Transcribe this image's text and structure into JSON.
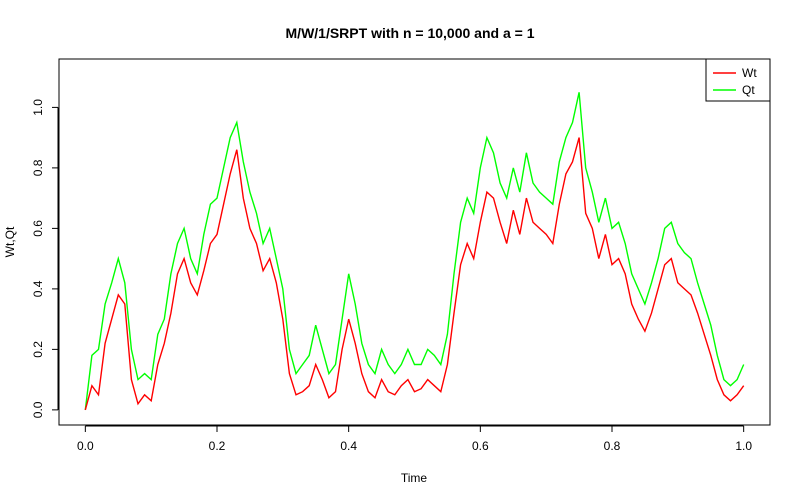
{
  "chart_data": {
    "type": "line",
    "title": "M/W/1/SRPT with n = 10,000 and a = 1",
    "xlabel": "Time",
    "ylabel": "Wt,Qt",
    "xlim": [
      -0.04,
      1.04
    ],
    "ylim": [
      -0.05,
      1.16
    ],
    "xticks": [
      0.0,
      0.2,
      0.4,
      0.6,
      0.8,
      1.0
    ],
    "xtick_labels": [
      "0.0",
      "0.2",
      "0.4",
      "0.6",
      "0.8",
      "1.0"
    ],
    "yticks": [
      0.0,
      0.2,
      0.4,
      0.6,
      0.8,
      1.0
    ],
    "ytick_labels": [
      "0.0",
      "0.2",
      "0.4",
      "0.6",
      "0.8",
      "1.0"
    ],
    "grid": false,
    "legend_position": "top-right",
    "series": [
      {
        "name": "Wt",
        "color": "#ff0000",
        "x": [
          0.0,
          0.01,
          0.02,
          0.03,
          0.04,
          0.05,
          0.06,
          0.07,
          0.08,
          0.09,
          0.1,
          0.11,
          0.12,
          0.13,
          0.14,
          0.15,
          0.16,
          0.17,
          0.18,
          0.19,
          0.2,
          0.21,
          0.22,
          0.23,
          0.24,
          0.25,
          0.26,
          0.27,
          0.28,
          0.29,
          0.3,
          0.31,
          0.32,
          0.33,
          0.34,
          0.35,
          0.36,
          0.37,
          0.38,
          0.39,
          0.4,
          0.41,
          0.42,
          0.43,
          0.44,
          0.45,
          0.46,
          0.47,
          0.48,
          0.49,
          0.5,
          0.51,
          0.52,
          0.53,
          0.54,
          0.55,
          0.56,
          0.57,
          0.58,
          0.59,
          0.6,
          0.61,
          0.62,
          0.63,
          0.64,
          0.65,
          0.66,
          0.67,
          0.68,
          0.69,
          0.7,
          0.71,
          0.72,
          0.73,
          0.74,
          0.75,
          0.76,
          0.77,
          0.78,
          0.79,
          0.8,
          0.81,
          0.82,
          0.83,
          0.84,
          0.85,
          0.86,
          0.87,
          0.88,
          0.89,
          0.9,
          0.91,
          0.92,
          0.93,
          0.94,
          0.95,
          0.96,
          0.97,
          0.98,
          0.99,
          1.0
        ],
        "values": [
          0.0,
          0.08,
          0.05,
          0.22,
          0.3,
          0.38,
          0.35,
          0.1,
          0.02,
          0.05,
          0.03,
          0.15,
          0.22,
          0.32,
          0.45,
          0.5,
          0.42,
          0.38,
          0.46,
          0.55,
          0.58,
          0.68,
          0.78,
          0.86,
          0.7,
          0.6,
          0.55,
          0.46,
          0.5,
          0.42,
          0.3,
          0.12,
          0.05,
          0.06,
          0.08,
          0.15,
          0.1,
          0.04,
          0.06,
          0.2,
          0.3,
          0.22,
          0.12,
          0.06,
          0.04,
          0.1,
          0.06,
          0.05,
          0.08,
          0.1,
          0.06,
          0.07,
          0.1,
          0.08,
          0.06,
          0.15,
          0.32,
          0.48,
          0.55,
          0.5,
          0.62,
          0.72,
          0.7,
          0.62,
          0.55,
          0.66,
          0.58,
          0.7,
          0.62,
          0.6,
          0.58,
          0.55,
          0.68,
          0.78,
          0.82,
          0.9,
          0.65,
          0.6,
          0.5,
          0.58,
          0.48,
          0.5,
          0.45,
          0.35,
          0.3,
          0.26,
          0.32,
          0.4,
          0.48,
          0.5,
          0.42,
          0.4,
          0.38,
          0.32,
          0.25,
          0.18,
          0.1,
          0.05,
          0.03,
          0.05,
          0.08
        ]
      },
      {
        "name": "Qt",
        "color": "#00ff00",
        "x": [
          0.0,
          0.01,
          0.02,
          0.03,
          0.04,
          0.05,
          0.06,
          0.07,
          0.08,
          0.09,
          0.1,
          0.11,
          0.12,
          0.13,
          0.14,
          0.15,
          0.16,
          0.17,
          0.18,
          0.19,
          0.2,
          0.21,
          0.22,
          0.23,
          0.24,
          0.25,
          0.26,
          0.27,
          0.28,
          0.29,
          0.3,
          0.31,
          0.32,
          0.33,
          0.34,
          0.35,
          0.36,
          0.37,
          0.38,
          0.39,
          0.4,
          0.41,
          0.42,
          0.43,
          0.44,
          0.45,
          0.46,
          0.47,
          0.48,
          0.49,
          0.5,
          0.51,
          0.52,
          0.53,
          0.54,
          0.55,
          0.56,
          0.57,
          0.58,
          0.59,
          0.6,
          0.61,
          0.62,
          0.63,
          0.64,
          0.65,
          0.66,
          0.67,
          0.68,
          0.69,
          0.7,
          0.71,
          0.72,
          0.73,
          0.74,
          0.75,
          0.76,
          0.77,
          0.78,
          0.79,
          0.8,
          0.81,
          0.82,
          0.83,
          0.84,
          0.85,
          0.86,
          0.87,
          0.88,
          0.89,
          0.9,
          0.91,
          0.92,
          0.93,
          0.94,
          0.95,
          0.96,
          0.97,
          0.98,
          0.99,
          1.0
        ],
        "values": [
          0.0,
          0.18,
          0.2,
          0.35,
          0.42,
          0.5,
          0.42,
          0.2,
          0.1,
          0.12,
          0.1,
          0.25,
          0.3,
          0.45,
          0.55,
          0.6,
          0.5,
          0.45,
          0.58,
          0.68,
          0.7,
          0.8,
          0.9,
          0.95,
          0.82,
          0.72,
          0.65,
          0.55,
          0.6,
          0.5,
          0.4,
          0.2,
          0.12,
          0.15,
          0.18,
          0.28,
          0.2,
          0.12,
          0.15,
          0.3,
          0.45,
          0.35,
          0.22,
          0.15,
          0.12,
          0.2,
          0.15,
          0.12,
          0.15,
          0.2,
          0.15,
          0.15,
          0.2,
          0.18,
          0.15,
          0.25,
          0.45,
          0.62,
          0.7,
          0.65,
          0.8,
          0.9,
          0.85,
          0.75,
          0.7,
          0.8,
          0.72,
          0.85,
          0.75,
          0.72,
          0.7,
          0.68,
          0.82,
          0.9,
          0.95,
          1.05,
          0.8,
          0.72,
          0.62,
          0.7,
          0.6,
          0.62,
          0.55,
          0.45,
          0.4,
          0.35,
          0.42,
          0.5,
          0.6,
          0.62,
          0.55,
          0.52,
          0.5,
          0.42,
          0.35,
          0.28,
          0.18,
          0.1,
          0.08,
          0.1,
          0.15
        ]
      }
    ]
  }
}
